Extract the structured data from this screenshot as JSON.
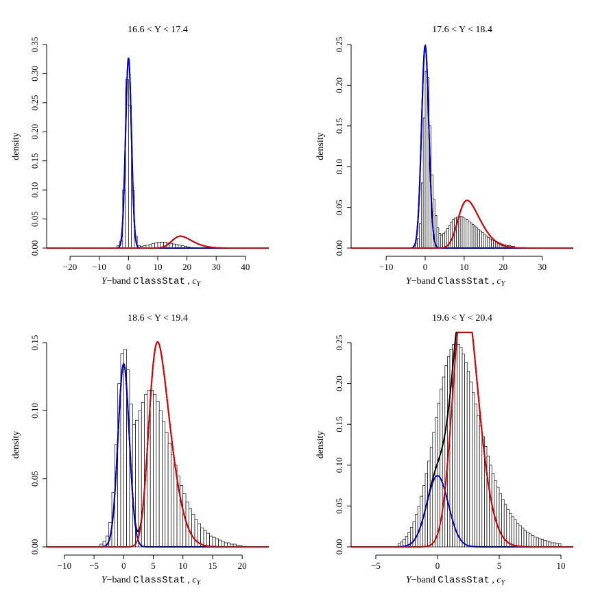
{
  "chart_data": [
    {
      "type": "bar",
      "title": "16.6 < Y < 17.4",
      "ylabel": "density",
      "xlabel": "Y−band  ClassStat , cY",
      "xlim": [
        -28,
        48
      ],
      "ylim": [
        0,
        0.35
      ],
      "xticks": [
        -20,
        -10,
        0,
        10,
        20,
        30,
        40
      ],
      "yticks": [
        0.0,
        0.05,
        0.1,
        0.15,
        0.2,
        0.25,
        0.3,
        0.35
      ],
      "ytick_labels": [
        "0.00",
        "0.05",
        "0.10",
        "0.15",
        "0.20",
        "0.25",
        "0.30",
        "0.35"
      ],
      "series": [
        {
          "color": "#000000",
          "mixture": [
            {
              "w": 0.82,
              "mu": 0,
              "sigma": 1.0
            },
            {
              "w": 0.18,
              "mu": 15,
              "sigma": 5.5,
              "skew": 0.8
            }
          ]
        },
        {
          "color": "#0000cc",
          "mixture": [
            {
              "w": 0.82,
              "mu": 0,
              "sigma": 1.0
            }
          ]
        },
        {
          "color": "#dd0000",
          "mixture": [
            {
              "w": 0.18,
              "mu": 15,
              "sigma": 5.5,
              "skew": 0.8
            }
          ]
        }
      ],
      "histogram": {
        "start": -4,
        "step": 1,
        "values": [
          0.004,
          0.012,
          0.1,
          0.29,
          0.245,
          0.1,
          0.02,
          0.004,
          0.003,
          0.004,
          0.005,
          0.006,
          0.008,
          0.009,
          0.01,
          0.01,
          0.01,
          0.009,
          0.008,
          0.007,
          0.006,
          0.005,
          0.004,
          0.003,
          0.002,
          0.001
        ]
      }
    },
    {
      "type": "bar",
      "title": "17.6 < Y < 18.4",
      "ylabel": "density",
      "xlabel": "Y−band  ClassStat , cY",
      "xlim": [
        -19,
        38
      ],
      "ylim": [
        0,
        0.25
      ],
      "xticks": [
        -10,
        0,
        10,
        20,
        30
      ],
      "yticks": [
        0.0,
        0.05,
        0.1,
        0.15,
        0.2,
        0.25
      ],
      "ytick_labels": [
        "0.00",
        "0.05",
        "0.10",
        "0.15",
        "0.20",
        "0.25"
      ],
      "series": [
        {
          "color": "#000000",
          "mixture": [
            {
              "w": 0.58,
              "mu": 0,
              "sigma": 0.93
            },
            {
              "w": 0.42,
              "mu": 8.5,
              "sigma": 4.6,
              "skew": 0.9
            }
          ]
        },
        {
          "color": "#0000cc",
          "mixture": [
            {
              "w": 0.58,
              "mu": 0,
              "sigma": 0.93
            }
          ]
        },
        {
          "color": "#dd0000",
          "mixture": [
            {
              "w": 0.42,
              "mu": 8.5,
              "sigma": 4.6,
              "skew": 0.9
            }
          ]
        }
      ],
      "histogram": {
        "start": -3,
        "step": 0.5,
        "values": [
          0.003,
          0.006,
          0.012,
          0.03,
          0.08,
          0.16,
          0.217,
          0.21,
          0.15,
          0.09,
          0.06,
          0.04,
          0.025,
          0.018,
          0.016,
          0.018,
          0.02,
          0.024,
          0.028,
          0.032,
          0.035,
          0.037,
          0.038,
          0.039,
          0.039,
          0.038,
          0.036,
          0.035,
          0.033,
          0.031,
          0.029,
          0.027,
          0.025,
          0.023,
          0.021,
          0.019,
          0.017,
          0.015,
          0.013,
          0.011,
          0.01,
          0.009,
          0.008,
          0.007,
          0.006,
          0.005,
          0.004,
          0.004,
          0.003,
          0.003,
          0.002,
          0.002
        ]
      }
    },
    {
      "type": "bar",
      "title": "18.6 < Y < 19.4",
      "ylabel": "density",
      "xlabel": "Y−band  ClassStat , cY",
      "xlim": [
        -13,
        24.5
      ],
      "ylim": [
        0,
        0.15
      ],
      "xticks": [
        -10,
        -5,
        0,
        5,
        10,
        15,
        20
      ],
      "yticks": [
        0.0,
        0.05,
        0.1,
        0.15
      ],
      "ytick_labels": [
        "0.00",
        "0.05",
        "0.10",
        "0.15"
      ],
      "series": [
        {
          "color": "#000000",
          "mixture": [
            {
              "w": 0.32,
              "mu": 0,
              "sigma": 0.95
            },
            {
              "w": 0.68,
              "mu": 4.3,
              "sigma": 2.9,
              "skew": 0.9
            }
          ]
        },
        {
          "color": "#0000cc",
          "mixture": [
            {
              "w": 0.32,
              "mu": 0,
              "sigma": 0.95
            }
          ]
        },
        {
          "color": "#dd0000",
          "mixture": [
            {
              "w": 0.68,
              "mu": 4.3,
              "sigma": 2.9,
              "skew": 0.9
            }
          ]
        }
      ],
      "histogram": {
        "start": -4,
        "step": 0.5,
        "values": [
          0.002,
          0.004,
          0.008,
          0.018,
          0.04,
          0.075,
          0.12,
          0.142,
          0.145,
          0.13,
          0.105,
          0.09,
          0.093,
          0.1,
          0.106,
          0.112,
          0.115,
          0.115,
          0.112,
          0.107,
          0.1,
          0.092,
          0.084,
          0.076,
          0.068,
          0.06,
          0.052,
          0.045,
          0.039,
          0.033,
          0.028,
          0.024,
          0.02,
          0.017,
          0.014,
          0.012,
          0.01,
          0.008,
          0.007,
          0.006,
          0.005,
          0.004,
          0.003,
          0.003,
          0.002,
          0.002,
          0.001,
          0.001
        ]
      }
    },
    {
      "type": "bar",
      "title": "19.6 < Y < 20.4",
      "ylabel": "density",
      "xlabel": "Y−band  ClassStat , cY",
      "xlim": [
        -7,
        11
      ],
      "ylim": [
        0,
        0.25
      ],
      "xticks": [
        -5,
        0,
        5,
        10
      ],
      "yticks": [
        0.0,
        0.05,
        0.1,
        0.15,
        0.2,
        0.25
      ],
      "ytick_labels": [
        "0.00",
        "0.05",
        "0.10",
        "0.15",
        "0.20",
        "0.25"
      ],
      "series": [
        {
          "color": "#000000",
          "mixture": [
            {
              "w": 0.19,
              "mu": 0,
              "sigma": 0.87
            },
            {
              "w": 0.81,
              "mu": 1.4,
              "sigma": 1.45,
              "skew": 0.55
            }
          ]
        },
        {
          "color": "#0000cc",
          "mixture": [
            {
              "w": 0.19,
              "mu": 0,
              "sigma": 0.87
            }
          ]
        },
        {
          "color": "#dd0000",
          "mixture": [
            {
              "w": 0.81,
              "mu": 1.4,
              "sigma": 1.45,
              "skew": 0.55
            }
          ]
        }
      ],
      "histogram": {
        "start": -3.2,
        "step": 0.2,
        "values": [
          0.004,
          0.006,
          0.009,
          0.013,
          0.018,
          0.024,
          0.031,
          0.04,
          0.05,
          0.062,
          0.075,
          0.09,
          0.105,
          0.122,
          0.14,
          0.158,
          0.176,
          0.193,
          0.208,
          0.222,
          0.233,
          0.242,
          0.248,
          0.25,
          0.248,
          0.244,
          0.236,
          0.226,
          0.215,
          0.202,
          0.189,
          0.175,
          0.161,
          0.148,
          0.135,
          0.123,
          0.111,
          0.1,
          0.09,
          0.081,
          0.073,
          0.065,
          0.058,
          0.052,
          0.046,
          0.041,
          0.037,
          0.033,
          0.029,
          0.026,
          0.023,
          0.02,
          0.018,
          0.016,
          0.014,
          0.012,
          0.011,
          0.01,
          0.009,
          0.008,
          0.007,
          0.006,
          0.005,
          0.005,
          0.004,
          0.004
        ]
      }
    }
  ]
}
